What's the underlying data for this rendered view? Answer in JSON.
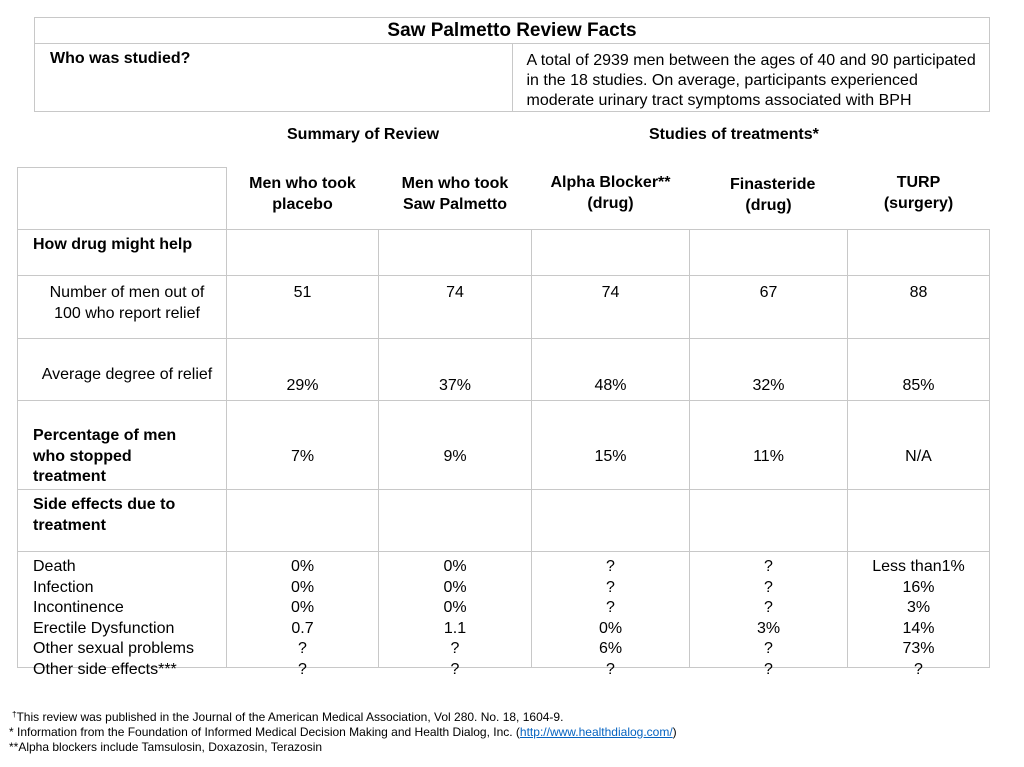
{
  "facts": {
    "title": "Saw Palmetto Review Facts",
    "who_label": "Who was studied?",
    "who_text": "A total of 2939 men between the ages of 40 and 90 participated in the 18 studies.  On average, participants experienced moderate urinary tract symptoms associated with BPH"
  },
  "headings": {
    "summary": "Summary of Review",
    "studies": "Studies of treatments*"
  },
  "columns": [
    "Men who took placebo",
    "Men who took Saw Palmetto",
    "Alpha Blocker** (drug)",
    "Finasteride (drug)",
    "TURP (surgery)"
  ],
  "rows": {
    "help_label": "How drug might help",
    "relief_label": "Number of men out of 100 who report relief",
    "relief_values": [
      "51",
      "74",
      "74",
      "67",
      "88"
    ],
    "degree_label": "Average degree of relief",
    "degree_values": [
      "29%",
      "37%",
      "48%",
      "32%",
      "85%"
    ],
    "stopped_label": "Percentage of men who stopped treatment",
    "stopped_values": [
      "7%",
      "9%",
      "15%",
      "11%",
      "N/A"
    ],
    "side_label": "Side effects due to treatment",
    "side_effects": {
      "labels": [
        "Death",
        "Infection",
        "Incontinence",
        "Erectile Dysfunction",
        "Other sexual problems",
        "Other side effects***"
      ],
      "placebo": [
        "0%",
        "0%",
        "0%",
        "0.7",
        "?",
        "?"
      ],
      "saw_palmetto": [
        "0%",
        "0%",
        "0%",
        "1.1",
        "?",
        "?"
      ],
      "alpha_blocker": [
        "?",
        "?",
        "?",
        "0%",
        "6%",
        "?"
      ],
      "finasteride": [
        "?",
        "?",
        "?",
        "3%",
        "?",
        "?"
      ],
      "turp": [
        "Less than1%",
        "16%",
        "3%",
        "14%",
        "73%",
        "?"
      ]
    }
  },
  "footnotes": {
    "dagger": "†",
    "journal": "This review was published in the Journal of the American Medical Association, Vol 280. No. 18, 1604-9.",
    "foundation_prefix": "* Information from the Foundation of Informed Medical Decision Making and Health Dialog, Inc. (",
    "foundation_link": "http://www.healthdialog.com/",
    "foundation_suffix": ")",
    "alpha": "**Alpha blockers include Tamsulosin, Doxazosin, Terazosin"
  }
}
